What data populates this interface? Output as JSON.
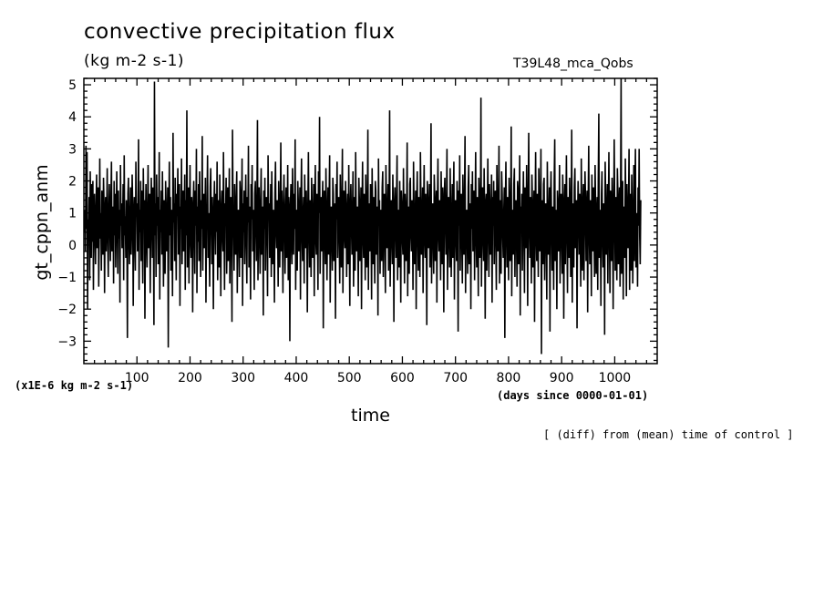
{
  "chart_data": {
    "type": "line",
    "title": "convective precipitation flux",
    "subtitle": "(kg m-2 s-1)",
    "run_label": "T39L48_mca_Qobs",
    "ylabel": "gt_cppn_anm",
    "xlabel": "time",
    "x_units": "(days since 0000-01-01)",
    "y_scale_note": "(x1E-6 kg m-2 s-1)",
    "note": "[ (diff) from (mean) time of control ]",
    "xlim": [
      0,
      1080
    ],
    "ylim": [
      -3.7,
      5.2
    ],
    "x_ticks": [
      100,
      200,
      300,
      400,
      500,
      600,
      700,
      800,
      900,
      1000
    ],
    "y_ticks": [
      -3,
      -2,
      -1,
      0,
      1,
      2,
      3,
      4,
      5
    ],
    "grid": false,
    "series": [
      {
        "x_start": 1,
        "x_step": 1,
        "values": [
          0.4,
          1.1,
          -0.2,
          3.1,
          0.5,
          2.9,
          -2.0,
          0.8,
          0.2,
          1.5,
          -1.1,
          2.3,
          0.7,
          -0.4,
          1.9,
          0.1,
          2.0,
          -1.4,
          0.9,
          1.6,
          0.3,
          -0.6,
          1.2,
          2.2,
          -0.1,
          0.6,
          1.8,
          -1.3,
          0.4,
          2.7,
          0.2,
          1.0,
          -0.8,
          1.7,
          0.5,
          -0.3,
          2.1,
          1.3,
          -1.5,
          0.8,
          1.5,
          -0.2,
          0.9,
          2.4,
          0.1,
          -1.0,
          1.1,
          1.9,
          0.6,
          -0.5,
          1.4,
          2.6,
          -0.2,
          0.7,
          1.2,
          -1.2,
          2.0,
          0.3,
          1.6,
          -0.7,
          0.9,
          2.3,
          0.4,
          -0.9,
          1.7,
          0.2,
          1.1,
          -1.8,
          2.5,
          0.6,
          1.3,
          -0.1,
          0.5,
          1.9,
          -1.1,
          2.8,
          0.3,
          0.9,
          -0.4,
          1.4,
          0.7,
          -2.9,
          1.6,
          2.1,
          0.2,
          -0.6,
          1.0,
          1.8,
          -0.3,
          0.5,
          2.2,
          1.2,
          -1.9,
          0.8,
          1.5,
          0.1,
          -0.8,
          2.6,
          0.9,
          1.3,
          -0.2,
          0.6,
          3.3,
          -1.4,
          1.1,
          0.4,
          2.0,
          -0.5,
          1.7,
          0.3,
          -1.2,
          2.4,
          0.8,
          1.4,
          -2.3,
          0.6,
          1.9,
          0.2,
          -0.7,
          1.2,
          2.5,
          -0.1,
          0.9,
          1.6,
          -1.5,
          0.5,
          2.1,
          1.0,
          -0.4,
          1.8,
          0.7,
          -2.5,
          5.1,
          0.3,
          1.3,
          -1.0,
          2.2,
          0.6,
          1.5,
          -0.6,
          0.9,
          2.9,
          -1.7,
          1.1,
          0.4,
          1.7,
          -0.3,
          2.3,
          0.8,
          -1.3,
          1.4,
          0.2,
          -0.9,
          2.0,
          1.2,
          -0.2,
          0.5,
          1.8,
          -3.2,
          0.9,
          2.6,
          0.3,
          1.5,
          -0.8,
          1.1,
          0.6,
          -1.6,
          3.5,
          0.7,
          1.3,
          -0.5,
          2.1,
          0.4,
          -1.1,
          1.6,
          0.9,
          2.4,
          -0.3,
          0.8,
          1.9,
          -1.9,
          1.2,
          0.5,
          2.7,
          -0.6,
          1.0,
          1.7,
          -0.2,
          0.6,
          2.2,
          -1.4,
          1.4,
          0.3,
          4.2,
          -0.7,
          1.1,
          1.8,
          -1.2,
          0.8,
          2.5,
          0.2,
          -0.4,
          1.5,
          0.9,
          -2.1,
          1.3,
          2.0,
          0.4,
          -0.9,
          1.7,
          0.6,
          3.0,
          -1.5,
          1.2,
          0.1,
          1.9,
          -0.5,
          2.3,
          0.7,
          -1.0,
          1.4,
          0.5,
          3.4,
          -0.8,
          1.1,
          1.6,
          -0.1,
          0.9,
          2.1,
          -1.8,
          0.6,
          1.3,
          2.8,
          -0.4,
          1.0,
          0.3,
          -1.3,
          1.8,
          2.4,
          0.7,
          -0.6,
          1.5,
          0.2,
          -2.0,
          1.2,
          2.0,
          0.8,
          -0.3,
          1.6,
          0.4,
          2.6,
          -1.1,
          0.9,
          1.4,
          -0.7,
          2.2,
          0.5,
          -1.6,
          1.1,
          1.7,
          0.3,
          -0.2,
          2.9,
          0.6,
          -1.4,
          1.3,
          0.9,
          2.1,
          -0.9,
          0.4,
          1.8,
          -0.5,
          1.0,
          2.4,
          -1.2,
          0.7,
          1.5,
          0.2,
          -2.4,
          3.6,
          1.2,
          0.5,
          -0.8,
          1.9,
          0.8,
          -0.3,
          1.4,
          2.3,
          -1.5,
          0.6,
          1.1,
          0.3,
          -1.0,
          2.0,
          1.6,
          -0.4,
          0.9,
          2.7,
          -1.9,
          1.3,
          0.4,
          1.7,
          -0.6,
          1.0,
          2.2,
          0.1,
          -1.2,
          1.5,
          0.7,
          3.1,
          -0.7,
          1.2,
          0.5,
          -1.7,
          1.9,
          0.8,
          2.5,
          -0.2,
          1.1,
          0.3,
          -1.4,
          1.6,
          2.0,
          0.6,
          -0.5,
          1.3,
          3.9,
          -1.1,
          0.9,
          1.8,
          0.2,
          -0.9,
          1.4,
          2.4,
          -0.3,
          0.7,
          1.2,
          -2.2,
          1.7,
          0.5,
          2.1,
          -0.8,
          1.0,
          1.5,
          0.4,
          -1.6,
          2.8,
          0.9,
          1.3,
          -0.4,
          0.6,
          1.9,
          -1.0,
          2.3,
          0.8,
          -0.6,
          1.1,
          0.2,
          -1.8,
          1.6,
          2.6,
          0.5,
          -0.1,
          1.4,
          0.7,
          -1.3,
          2.0,
          1.2,
          -0.7,
          0.9,
          3.2,
          -0.2,
          1.7,
          0.3,
          -1.5,
          1.3,
          2.2,
          0.6,
          -0.9,
          1.0,
          1.8,
          -0.4,
          0.4,
          2.5,
          -1.1,
          1.5,
          0.8,
          -3.0,
          1.2,
          1.9,
          0.1,
          -0.6,
          2.4,
          0.9,
          -0.3,
          1.6,
          0.5,
          3.3,
          -1.4,
          1.1,
          0.7,
          -0.8,
          2.0,
          1.3,
          -0.2,
          0.6,
          1.8,
          -1.7,
          1.4,
          2.7,
          0.4,
          -0.5,
          1.0,
          1.5,
          -1.2,
          2.2,
          0.8,
          -0.1,
          1.7,
          0.3,
          -2.1,
          1.2,
          2.9,
          0.6,
          -0.7,
          1.4,
          0.9,
          -1.0,
          2.1,
          1.1,
          -0.4,
          0.5,
          1.9,
          -1.6,
          1.3,
          2.5,
          0.2,
          -0.3,
          1.6,
          0.7,
          -1.4,
          2.3,
          1.0,
          4.0,
          -0.9,
          0.8,
          1.5,
          -0.2,
          1.2,
          2.0,
          -2.6,
          0.6,
          1.7,
          0.4,
          -0.6,
          2.4,
          1.1,
          -1.1,
          0.9,
          1.8,
          -0.3,
          1.4,
          2.8,
          -1.8,
          0.5,
          1.2,
          0.3,
          -0.8,
          2.1,
          1.6,
          -0.5,
          0.7,
          1.3,
          -2.3,
          1.9,
          0.8,
          2.6,
          -0.4,
          1.0,
          1.5,
          0.2,
          -1.2,
          2.2,
          0.9,
          -0.7,
          1.4,
          3.0,
          -1.5,
          0.6,
          1.7,
          0.4,
          -0.1,
          2.0,
          1.2,
          -1.0,
          0.8,
          1.6,
          -0.6,
          2.5,
          0.3,
          -1.9,
          1.3,
          1.9,
          0.7,
          -0.3,
          1.1,
          2.3,
          -1.3,
          0.5,
          1.5,
          -0.8,
          2.9,
          0.9,
          -0.2,
          1.2,
          0.4,
          -1.6,
          2.1,
          1.4,
          -0.5,
          0.6,
          1.8,
          -2.0,
          1.0,
          2.6,
          0.3,
          -0.4,
          1.6,
          0.8,
          -1.1,
          2.2,
          1.2,
          -0.7,
          0.9,
          3.6,
          -1.4,
          1.3,
          0.5,
          -0.2,
          1.9,
          0.7,
          -1.7,
          2.4,
          1.0,
          -0.6,
          1.5,
          0.3,
          -1.2,
          2.0,
          1.7,
          -0.3,
          0.8,
          1.2,
          -2.2,
          2.7,
          0.6,
          1.4,
          -0.9,
          1.1,
          0.4,
          -0.5,
          1.8,
          2.3,
          -1.0,
          0.9,
          1.6,
          0.2,
          -1.5,
          2.5,
          1.3,
          -0.1,
          0.7,
          1.9,
          -0.8,
          1.0,
          4.2,
          -1.3,
          0.5,
          1.4,
          0.3,
          -0.6,
          2.2,
          0.9,
          -2.4,
          1.2,
          1.8,
          0.6,
          -0.4,
          1.5,
          2.8,
          -1.1,
          0.8,
          1.1,
          -0.7,
          2.0,
          0.4,
          -1.8,
          1.7,
          1.3,
          0.2,
          -0.3,
          2.4,
          0.7,
          -1.2,
          1.6,
          1.0,
          -0.5,
          0.9,
          3.2,
          -1.6,
          1.2,
          0.5,
          -0.9,
          1.9,
          2.1,
          0.3,
          -0.2,
          1.4,
          0.8,
          -1.4,
          2.6,
          1.1,
          -0.6,
          0.6,
          1.7,
          -2.0,
          1.3,
          2.3,
          0.4,
          -0.8,
          1.5,
          0.9,
          -1.0,
          2.9,
          1.2,
          -0.3,
          0.7,
          1.8,
          -1.5,
          1.0,
          2.5,
          0.2,
          -0.4,
          1.6,
          0.5,
          -2.5,
          2.0,
          1.4,
          -0.1,
          0.8,
          1.9,
          -0.7,
          1.1,
          3.8,
          -1.2,
          0.6,
          1.3,
          0.3,
          -0.9,
          2.2,
          1.5,
          -0.5,
          0.9,
          1.7,
          -1.8,
          1.2,
          2.7,
          0.4,
          -0.2,
          1.4,
          0.7,
          -1.1,
          2.3,
          1.0,
          -0.6,
          1.8,
          0.5,
          -2.1,
          1.6,
          2.1,
          0.8,
          -0.3,
          1.2,
          3.0,
          -1.4,
          0.9,
          1.5,
          0.2,
          -0.7,
          2.4,
          1.1,
          -1.0,
          0.6,
          1.9,
          -0.4,
          1.3,
          2.6,
          -1.7,
          0.8,
          1.4,
          0.3,
          -0.5,
          2.0,
          1.2,
          -2.7,
          1.7,
          0.6,
          2.8,
          -0.8,
          1.0,
          1.6,
          0.1,
          -1.2,
          2.2,
          0.9,
          -0.3,
          1.4,
          3.4,
          -1.5,
          0.7,
          1.1,
          0.4,
          -0.9,
          1.8,
          2.5,
          -0.6,
          1.0,
          1.3,
          -2.0,
          1.9,
          0.5,
          2.3,
          -0.2,
          1.2,
          1.7,
          -1.1,
          0.8,
          2.9,
          0.3,
          -0.7,
          1.5,
          0.9,
          -1.6,
          2.1,
          1.4,
          -0.4,
          0.6,
          4.6,
          -1.3,
          1.1,
          1.8,
          0.2,
          -0.5,
          2.4,
          0.8,
          -2.3,
          1.3,
          1.6,
          -0.8,
          1.0,
          2.7,
          0.4,
          -1.0,
          1.9,
          1.2,
          -0.3,
          0.7,
          2.2,
          -1.8,
          1.5,
          0.6,
          2.0,
          -0.6,
          1.1,
          1.7,
          0.1,
          -1.4,
          2.5,
          0.9,
          -0.2,
          1.3,
          3.1,
          -1.2,
          0.8,
          1.4,
          -0.9,
          2.3,
          1.6,
          0.3,
          -0.4,
          1.0,
          1.8,
          -2.9,
          1.2,
          2.6,
          0.5,
          -0.7,
          1.5,
          0.9,
          -1.1,
          2.1,
          1.3,
          -0.5,
          0.7,
          3.7,
          -1.6,
          1.1,
          0.4,
          -0.3,
          1.9,
          2.4,
          -1.0,
          0.8,
          1.4,
          0.2,
          -1.3,
          2.0,
          1.7,
          -0.6,
          0.9,
          2.8,
          -2.2,
          1.2,
          0.6,
          1.6,
          -0.8,
          1.0,
          2.3,
          0.3,
          -1.5,
          1.8,
          0.5,
          -0.1,
          2.5,
          1.1,
          -1.9,
          1.3,
          3.5,
          0.7,
          -0.4,
          1.5,
          0.9,
          -1.2,
          2.2,
          1.4,
          -0.7,
          0.6,
          1.7,
          -2.4,
          1.0,
          2.9,
          0.4,
          -0.5,
          1.6,
          0.8,
          -1.0,
          2.4,
          1.2,
          -0.2,
          0.9,
          3.0,
          -3.4,
          1.4,
          0.7,
          -0.6,
          1.9,
          2.1,
          -1.1,
          0.5,
          1.3,
          0.3,
          -1.7,
          2.6,
          1.0,
          -0.3,
          0.8,
          1.8,
          -2.7,
          1.5,
          2.3,
          0.6,
          -0.8,
          1.2,
          0.9,
          -1.4,
          2.0,
          3.3,
          -0.5,
          1.1,
          0.4,
          -2.0,
          1.7,
          1.3,
          -0.2,
          0.7,
          2.5,
          -1.2,
          1.0,
          1.6,
          0.2,
          -0.9,
          2.2,
          1.4,
          -2.3,
          0.6,
          1.9,
          -0.6,
          1.1,
          2.8,
          0.3,
          -1.5,
          1.5,
          0.9,
          -0.4,
          2.1,
          1.2,
          -1.0,
          0.8,
          3.6,
          -1.8,
          1.3,
          0.5,
          -0.7,
          1.8,
          2.4,
          -0.1,
          1.0,
          1.4,
          -2.6,
          0.7,
          2.0,
          1.1,
          -0.3,
          1.6,
          0.4,
          -1.3,
          2.7,
          0.9,
          -0.8,
          1.2,
          1.9,
          -1.1,
          0.6,
          2.3,
          1.5,
          -0.5,
          0.8,
          1.7,
          -2.1,
          1.3,
          3.1,
          0.4,
          -0.6,
          1.4,
          1.0,
          -1.6,
          2.2,
          0.7,
          -0.2,
          1.8,
          0.3,
          -1.0,
          2.5,
          1.2,
          -0.9,
          0.9,
          1.5,
          -1.4,
          2.0,
          4.1,
          -0.4,
          1.1,
          0.6,
          -1.9,
          1.6,
          2.3,
          0.2,
          -0.7,
          1.3,
          0.8,
          -2.8,
          2.6,
          1.4,
          -0.3,
          0.5,
          1.9,
          -1.2,
          1.0,
          2.9,
          0.4,
          -1.5,
          1.7,
          0.9,
          -0.5,
          2.1,
          1.2,
          -2.0,
          0.7,
          3.3,
          1.1,
          -0.8,
          1.5,
          0.3,
          -1.1,
          2.4,
          1.6,
          -0.6,
          0.9,
          1.8,
          -1.3,
          1.4,
          5.2,
          -0.9,
          0.6,
          2.0,
          -1.7,
          1.2,
          0.5,
          -0.4,
          2.7,
          1.0,
          -1.6,
          1.9,
          0.8,
          -0.1,
          1.3,
          3.0,
          -1.4,
          0.7,
          1.6,
          -0.8,
          2.2,
          1.1,
          -1.2,
          0.4,
          2.5,
          -0.5,
          1.5,
          3.0,
          -0.7,
          1.0,
          0.9,
          -1.3,
          1.8,
          0.6,
          3.0,
          0.3,
          -0.6,
          1.4
        ]
      }
    ]
  }
}
